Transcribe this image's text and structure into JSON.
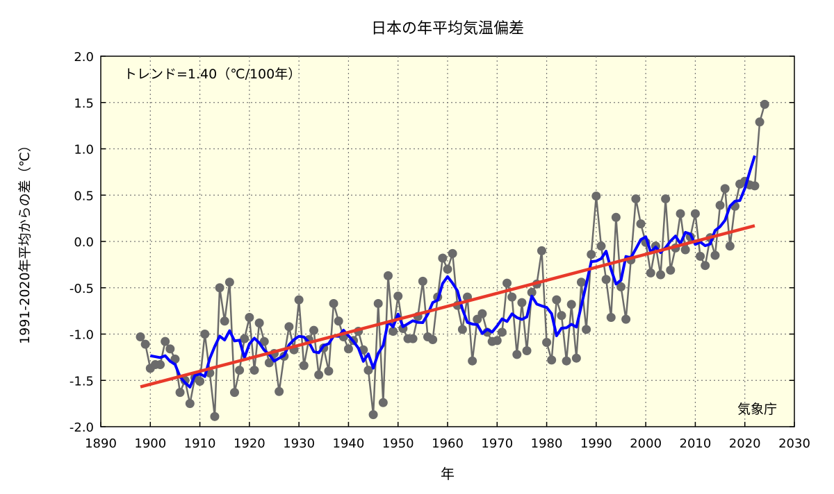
{
  "chart_data": {
    "type": "line",
    "title": "日本の年平均気温偏差",
    "xlabel": "年",
    "ylabel": "1991-2020年平均からの差（℃）",
    "annotation": "トレンド=1.40（℃/100年）",
    "source": "気象庁",
    "xlim": [
      1890,
      2030
    ],
    "ylim": [
      -2.0,
      2.0
    ],
    "x_ticks": [
      "1890",
      "1900",
      "1910",
      "1920",
      "1930",
      "1940",
      "1950",
      "1960",
      "1970",
      "1980",
      "1990",
      "2000",
      "2010",
      "2020",
      "2030"
    ],
    "y_ticks": [
      "2.0",
      "1.5",
      "1.0",
      "0.5",
      "0.0",
      "-0.5",
      "-1.0",
      "-1.5",
      "-2.0"
    ],
    "grid": true,
    "colors": {
      "background": "#ffffe3",
      "annual": "#6b6b6b",
      "running_mean": "#0000ff",
      "trend": "#e8392a"
    },
    "series": [
      {
        "kind": "annual",
        "x_start": 1898,
        "values": [
          -1.03,
          -1.11,
          -1.37,
          -1.33,
          -1.33,
          -1.08,
          -1.16,
          -1.27,
          -1.63,
          -1.5,
          -1.75,
          -1.47,
          -1.51,
          -1.0,
          -1.42,
          -1.89,
          -0.5,
          -0.86,
          -0.44,
          -1.63,
          -1.39,
          -1.05,
          -0.82,
          -1.39,
          -0.88,
          -1.08,
          -1.31,
          -1.21,
          -1.62,
          -1.24,
          -0.92,
          -1.17,
          -0.63,
          -1.34,
          -1.06,
          -0.96,
          -1.44,
          -1.15,
          -1.4,
          -0.67,
          -0.86,
          -1.03,
          -1.16,
          -1.07,
          -0.97,
          -1.17,
          -1.39,
          -1.87,
          -0.67,
          -1.74,
          -0.37,
          -0.97,
          -0.59,
          -0.94,
          -1.05,
          -1.05,
          -0.81,
          -0.43,
          -1.03,
          -1.06,
          -0.6,
          -0.18,
          -0.3,
          -0.13,
          -0.69,
          -0.95,
          -0.6,
          -1.29,
          -0.84,
          -0.78,
          -0.98,
          -1.08,
          -1.07,
          -0.98,
          -0.45,
          -0.6,
          -1.22,
          -0.66,
          -1.18,
          -0.55,
          -0.46,
          -0.1,
          -1.09,
          -1.28,
          -0.63,
          -0.8,
          -1.29,
          -0.68,
          -1.26,
          -0.44,
          -0.95,
          -0.14,
          0.49,
          -0.05,
          -0.41,
          -0.82,
          0.26,
          -0.49,
          -0.84,
          -0.2,
          0.46,
          0.19,
          -0.01,
          -0.34,
          -0.05,
          -0.36,
          0.46,
          -0.31,
          -0.07,
          0.3,
          -0.09,
          0.05,
          0.3,
          -0.16,
          -0.26,
          0.04,
          -0.15,
          0.39,
          0.57,
          -0.05,
          0.38,
          0.62,
          0.65,
          0.61,
          0.6,
          1.29,
          1.48
        ]
      },
      {
        "kind": "trend",
        "x": [
          1898,
          2022
        ],
        "values": [
          -1.57,
          0.17
        ]
      }
    ]
  }
}
